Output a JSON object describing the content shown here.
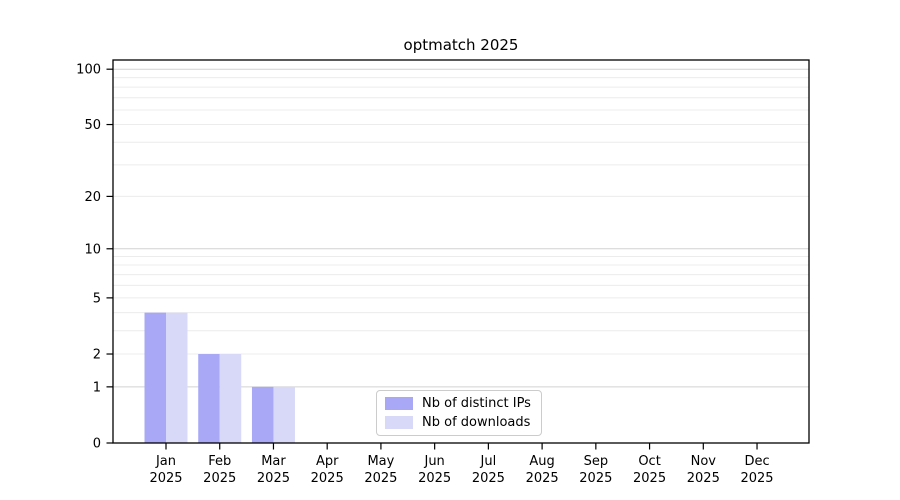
{
  "figure": {
    "background": "#ffffff"
  },
  "chart_data": {
    "type": "bar",
    "title": "optmatch 2025",
    "categories": [
      "Jan 2025",
      "Feb 2025",
      "Mar 2025",
      "Apr 2025",
      "May 2025",
      "Jun 2025",
      "Jul 2025",
      "Aug 2025",
      "Sep 2025",
      "Oct 2025",
      "Nov 2025",
      "Dec 2025"
    ],
    "series": [
      {
        "name": "Nb of distinct IPs",
        "color": "#a8a8f6",
        "values": [
          4,
          2,
          1,
          0,
          0,
          0,
          0,
          0,
          0,
          0,
          0,
          0
        ]
      },
      {
        "name": "Nb of downloads",
        "color": "#d8d8f8",
        "values": [
          4,
          2,
          1,
          0,
          0,
          0,
          0,
          0,
          0,
          0,
          0,
          0
        ]
      }
    ],
    "xlabel": "",
    "ylabel": "",
    "y_scale": "log10(1+x)",
    "y_ticks": [
      0,
      1,
      2,
      5,
      10,
      20,
      50,
      100
    ],
    "ylim": [
      0,
      113
    ],
    "grid": {
      "on": true,
      "major_values": [
        1,
        10,
        100
      ],
      "minor_values": [
        2,
        3,
        4,
        5,
        6,
        7,
        8,
        9,
        20,
        30,
        40,
        50,
        60,
        70,
        80,
        90
      ],
      "major_color": "#d2d2d2",
      "minor_color": "#ececec"
    },
    "legend_position": "lower center inside plot"
  },
  "colors": {
    "axis": "#000000",
    "text": "#000000",
    "legend_border": "#cccccc"
  }
}
